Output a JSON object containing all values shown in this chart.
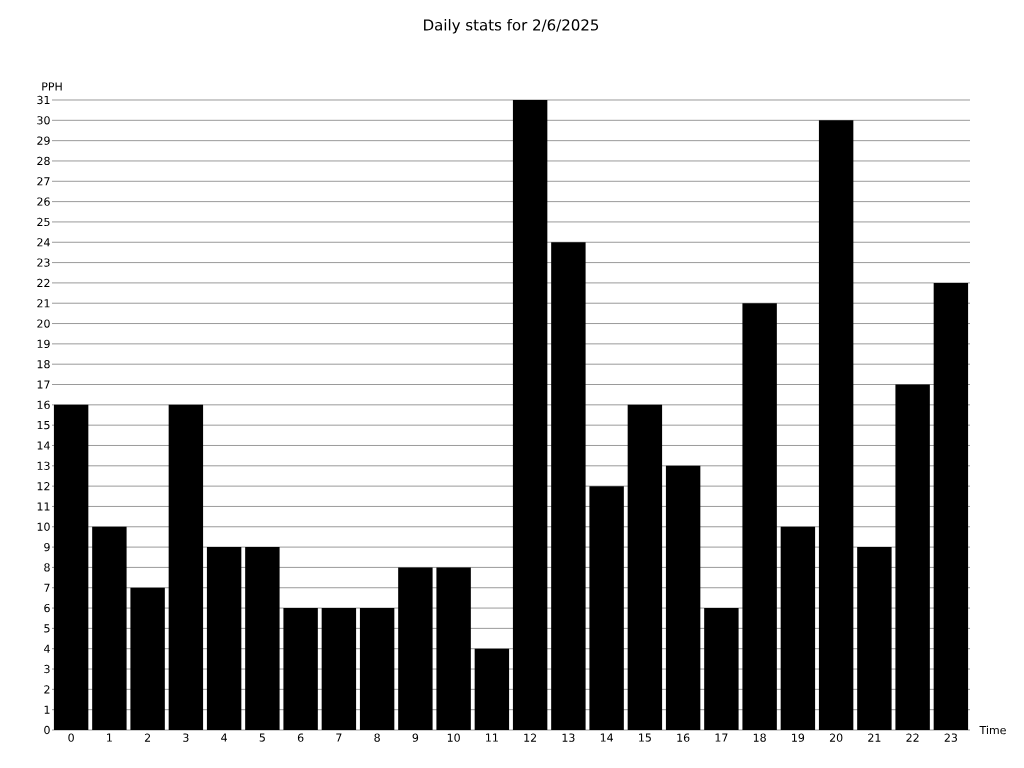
{
  "chart_data": {
    "type": "bar",
    "title": "Daily stats for 2/6/2025",
    "xlabel": "Time",
    "ylabel": "PPH",
    "categories": [
      "0",
      "1",
      "2",
      "3",
      "4",
      "5",
      "6",
      "7",
      "8",
      "9",
      "10",
      "11",
      "12",
      "13",
      "14",
      "15",
      "16",
      "17",
      "18",
      "19",
      "20",
      "21",
      "22",
      "23"
    ],
    "values": [
      16,
      10,
      7,
      16,
      9,
      9,
      6,
      6,
      6,
      8,
      8,
      4,
      31,
      24,
      12,
      16,
      13,
      6,
      21,
      10,
      30,
      9,
      17,
      22
    ],
    "color": "#000000",
    "ylim": [
      0,
      31
    ],
    "yticks": [
      0,
      1,
      2,
      3,
      4,
      5,
      6,
      7,
      8,
      9,
      10,
      11,
      12,
      13,
      14,
      15,
      16,
      17,
      18,
      19,
      20,
      21,
      22,
      23,
      24,
      25,
      26,
      27,
      28,
      29,
      30,
      31
    ],
    "grid": "y"
  }
}
